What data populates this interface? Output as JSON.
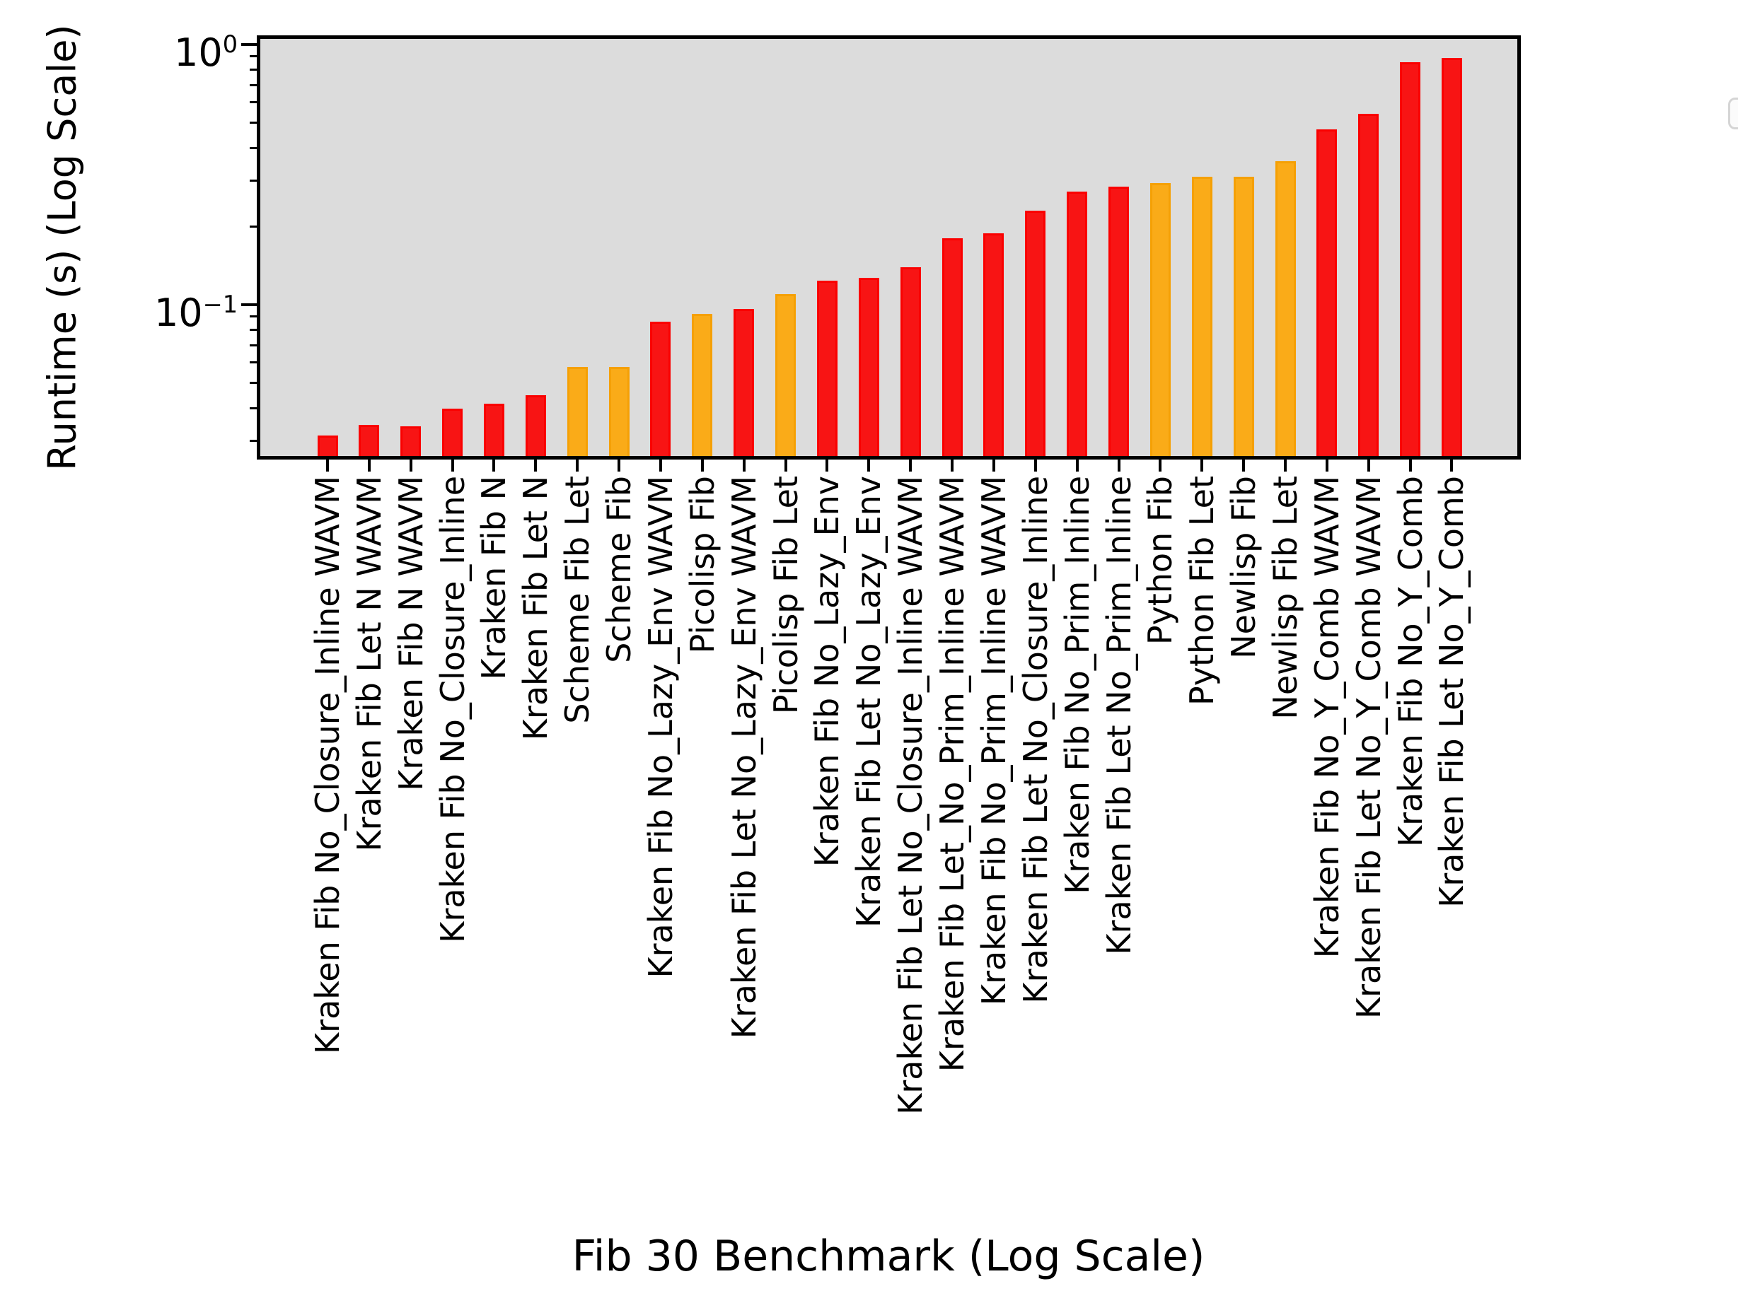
{
  "chart_data": {
    "type": "bar",
    "title": "",
    "xlabel": "Fib 30 Benchmark (Log Scale)",
    "ylabel": "Runtime (s) (Log Scale)",
    "yscale": "log",
    "ylim": [
      0.0262,
      1.051
    ],
    "grid": false,
    "legend": "empty-box-top-right",
    "plot_background": "#dcdcdc",
    "figure_background": "#ffffff",
    "palette": {
      "red": "#f81414",
      "orange": "#faab18"
    },
    "y_major_ticks": [
      {
        "value": 1,
        "base": "10",
        "exponent": "0"
      },
      {
        "value": 0.1,
        "base": "10",
        "exponent": "−1"
      }
    ],
    "categories": [
      "Kraken Fib No_Closure_Inline WAVM",
      "Kraken Fib Let N WAVM",
      "Kraken Fib N WAVM",
      "Kraken Fib No_Closure_Inline",
      "Kraken Fib N",
      "Kraken Fib Let N",
      "Scheme Fib Let",
      "Scheme Fib",
      "Kraken Fib No_Lazy_Env WAVM",
      "Picolisp Fib",
      "Kraken Fib Let No_Lazy_Env WAVM",
      "Picolisp Fib Let",
      "Kraken Fib No_Lazy_Env",
      "Kraken Fib Let No_Lazy_Env",
      "Kraken Fib Let No_Closure_Inline WAVM",
      "Kraken Fib Let_No_Prim_Inline WAVM",
      "Kraken Fib No_Prim_Inline WAVM",
      "Kraken Fib Let No_Closure_Inline",
      "Kraken Fib No_Prim_Inline",
      "Kraken Fib Let No_Prim_Inline",
      "Python Fib",
      "Python Fib Let",
      "Newlisp Fib",
      "Newlisp Fib Let",
      "Kraken Fib No_Y_Comb WAVM",
      "Kraken Fib Let No_Y_Comb WAVM",
      "Kraken Fib No_Y_Comb",
      "Kraken Fib Let No_Y_Comb"
    ],
    "values": [
      0.0314,
      0.0345,
      0.034,
      0.0398,
      0.0416,
      0.0449,
      0.0575,
      0.0575,
      0.0861,
      0.092,
      0.0965,
      0.11,
      0.1235,
      0.1266,
      0.139,
      0.1804,
      0.1881,
      0.2303,
      0.2727,
      0.2838,
      0.2928,
      0.31,
      0.311,
      0.3555,
      0.471,
      0.5427,
      0.8571,
      0.888
    ],
    "bar_colors": [
      "red",
      "red",
      "red",
      "red",
      "red",
      "red",
      "orange",
      "orange",
      "red",
      "orange",
      "red",
      "orange",
      "red",
      "red",
      "red",
      "red",
      "red",
      "red",
      "red",
      "red",
      "orange",
      "orange",
      "orange",
      "orange",
      "red",
      "red",
      "red",
      "red"
    ]
  }
}
